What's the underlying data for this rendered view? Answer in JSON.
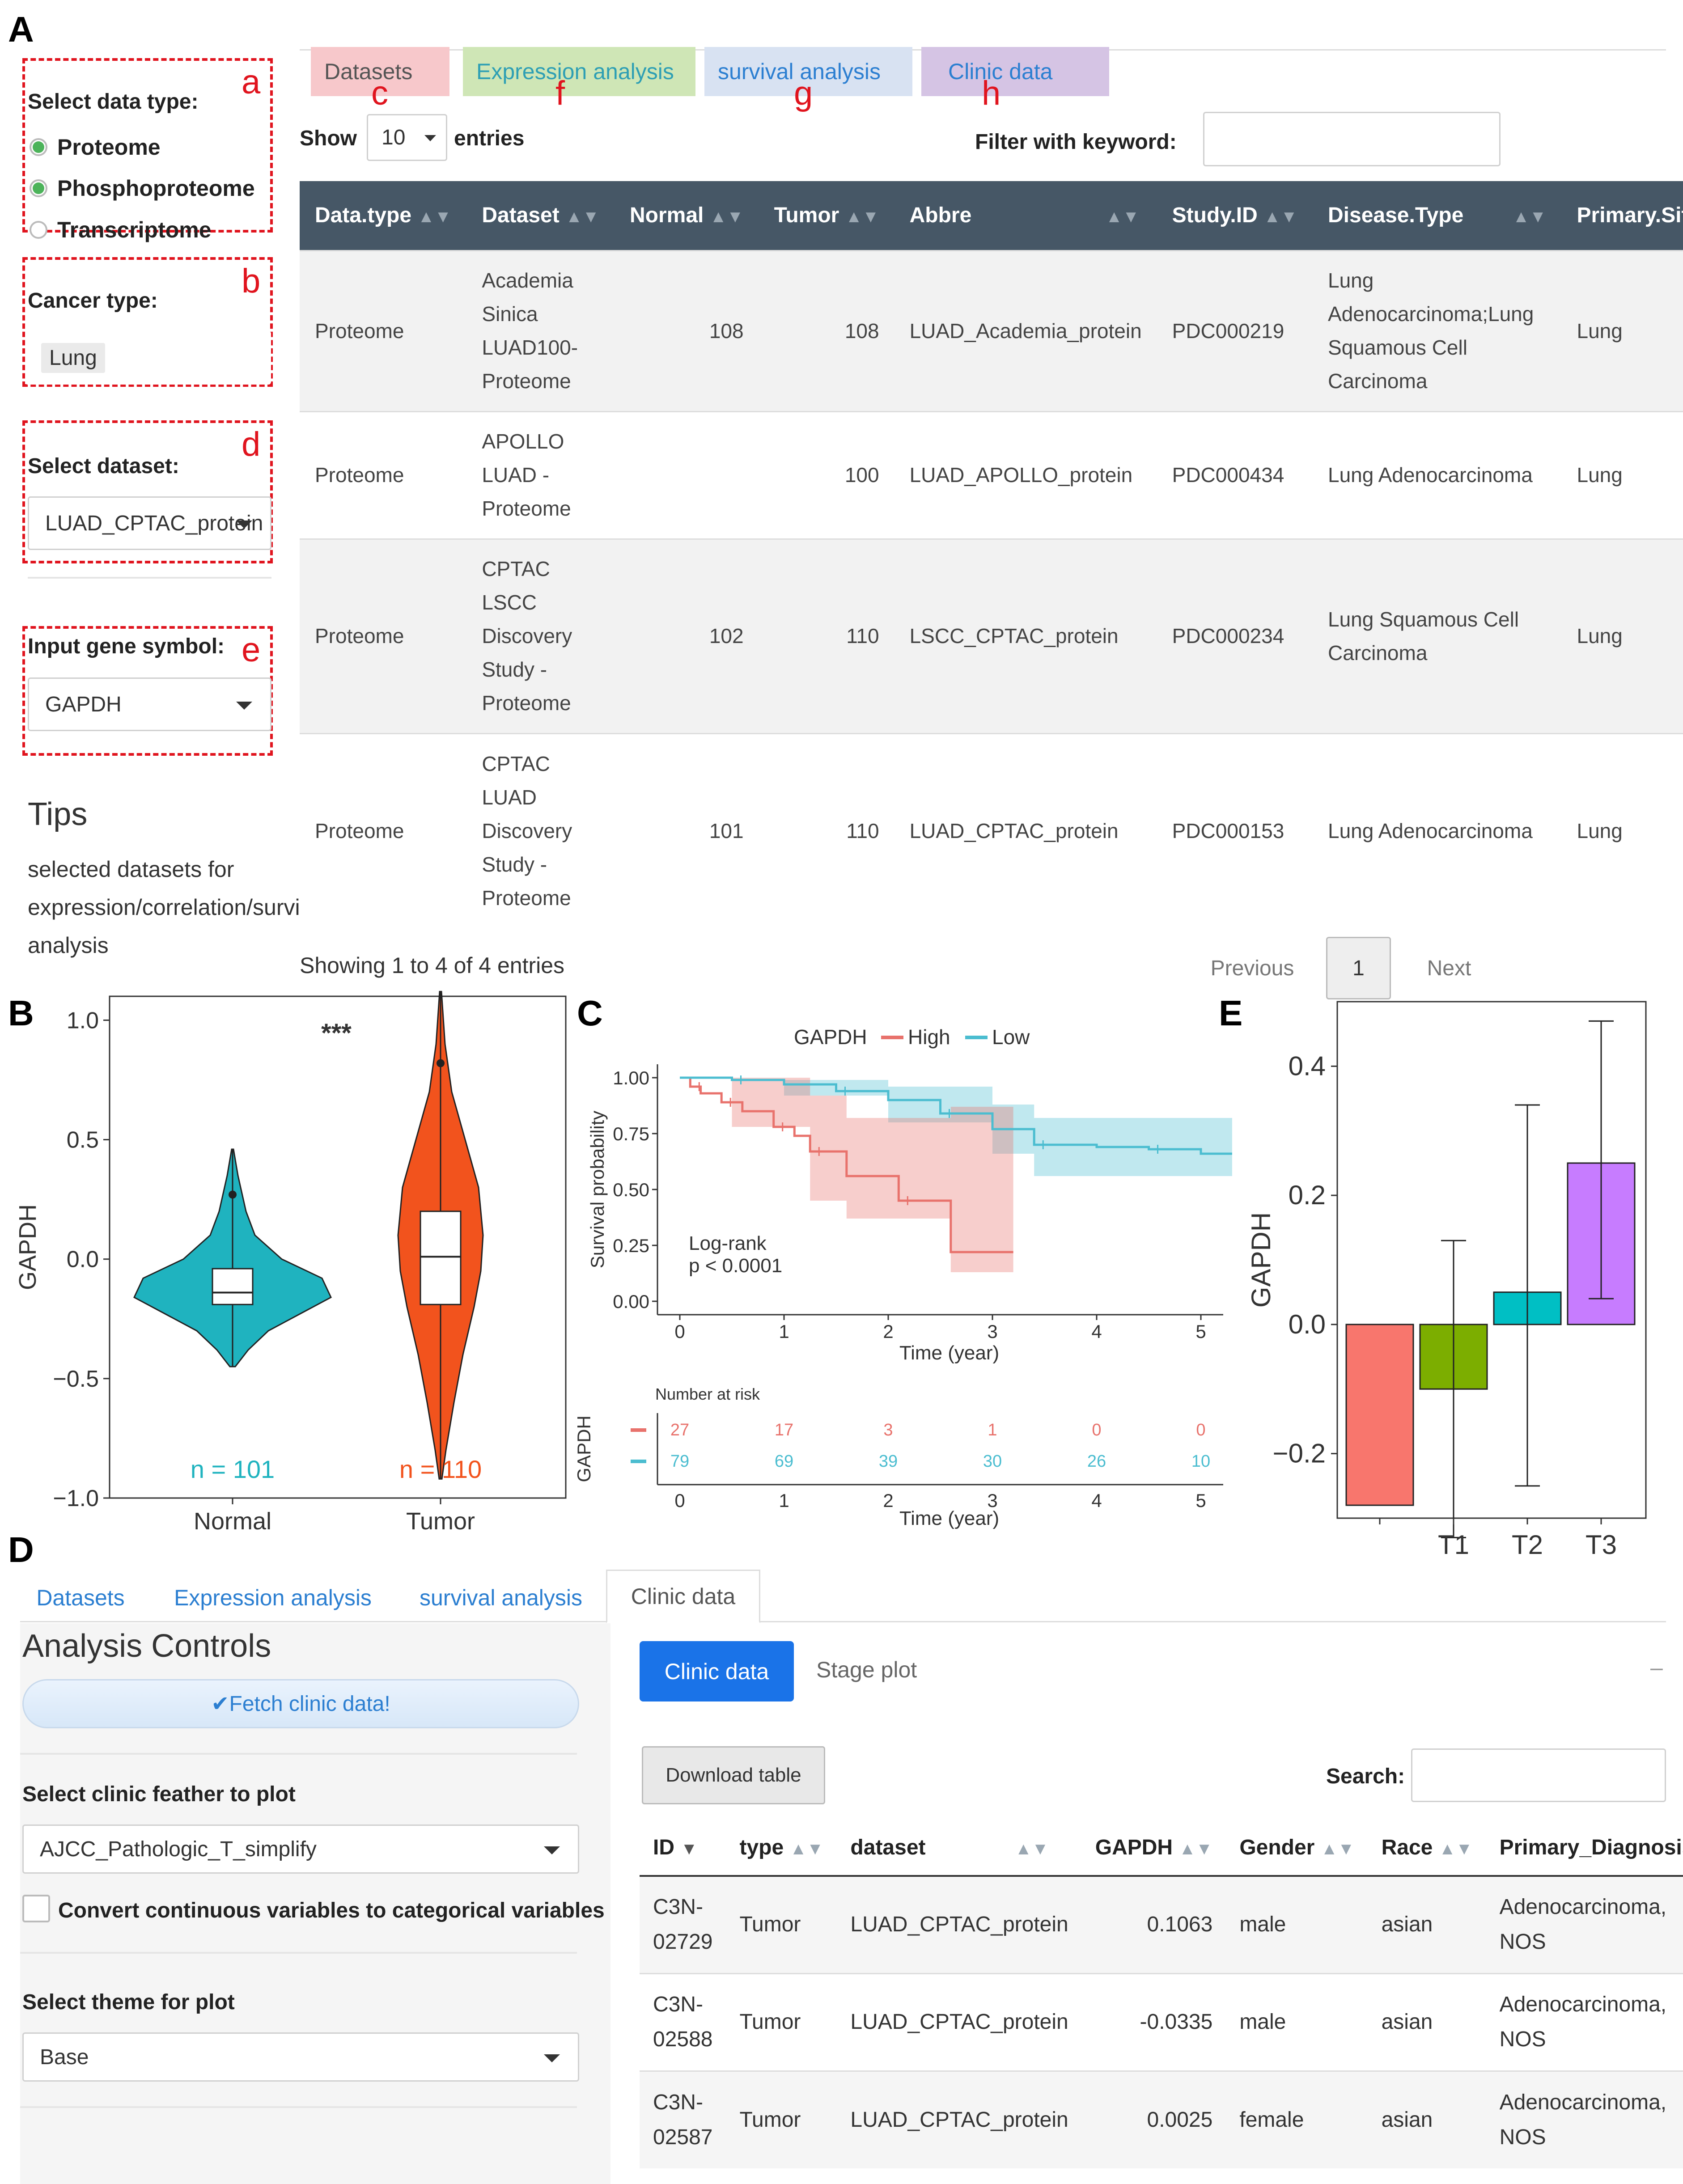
{
  "panel_labels": {
    "A": "A",
    "B": "B",
    "C": "C",
    "D": "D",
    "E": "E"
  },
  "annot": {
    "a": "a",
    "b": "b",
    "c": "c",
    "d": "d",
    "e": "e",
    "f": "f",
    "g": "g",
    "h": "h"
  },
  "sidebar": {
    "data_type_label": "Select data type:",
    "data_types": [
      {
        "label": "Proteome",
        "checked": true
      },
      {
        "label": "Phosphoproteome",
        "checked": true
      },
      {
        "label": "Transcriptome",
        "checked": false
      }
    ],
    "cancer_type_label": "Cancer type:",
    "cancer_type_value": "Lung",
    "dataset_label": "Select dataset:",
    "dataset_value": "LUAD_CPTAC_protein",
    "gene_label": "Input gene symbol:",
    "gene_value": "GAPDH",
    "tips_title": "Tips",
    "tips_text_1": "selected datasets for",
    "tips_text_2": "expression/correlation/survival",
    "tips_text_3": "analysis"
  },
  "tabsA": [
    {
      "label": "Datasets",
      "bg": "#f7c8cb",
      "color": "#555"
    },
    {
      "label": "Expression analysis",
      "bg": "#cfe6b6",
      "color": "#2e9fb4"
    },
    {
      "label": "survival analysis",
      "bg": "#d8e2f2",
      "color": "#2c7fd1"
    },
    {
      "label": "Clinic data",
      "bg": "#d5c4e4",
      "color": "#2c7fd1"
    }
  ],
  "tableA": {
    "show_label": "Show",
    "show_value": "10",
    "entries_label": "entries",
    "filter_label": "Filter with keyword:",
    "headers": [
      "Data.type",
      "Dataset",
      "Normal",
      "Tumor",
      "Abbre",
      "Study.ID",
      "Disease.Type",
      "Primary.Site"
    ],
    "rows": [
      {
        "type": "Proteome",
        "dataset": [
          "Academia",
          "Sinica",
          "LUAD100-",
          "Proteome"
        ],
        "normal": "108",
        "tumor": "108",
        "abbre": "LUAD_Academia_protein",
        "study": "PDC000219",
        "disease": [
          "Lung",
          "Adenocarcinoma;Lung",
          "Squamous Cell",
          "Carcinoma"
        ],
        "site": "Lung"
      },
      {
        "type": "Proteome",
        "dataset": [
          "APOLLO",
          "LUAD -",
          "Proteome"
        ],
        "normal": "",
        "tumor": "100",
        "abbre": "LUAD_APOLLO_protein",
        "study": "PDC000434",
        "disease": [
          "Lung Adenocarcinoma"
        ],
        "site": "Lung"
      },
      {
        "type": "Proteome",
        "dataset": [
          "CPTAC",
          "LSCC",
          "Discovery",
          "Study -",
          "Proteome"
        ],
        "normal": "102",
        "tumor": "110",
        "abbre": "LSCC_CPTAC_protein",
        "study": "PDC000234",
        "disease": [
          "Lung Squamous Cell",
          "Carcinoma"
        ],
        "site": "Lung"
      },
      {
        "type": "Proteome",
        "dataset": [
          "CPTAC",
          "LUAD",
          "Discovery",
          "Study -",
          "Proteome"
        ],
        "normal": "101",
        "tumor": "110",
        "abbre": "LUAD_CPTAC_protein",
        "study": "PDC000153",
        "disease": [
          "Lung Adenocarcinoma"
        ],
        "site": "Lung"
      }
    ],
    "showing": "Showing 1 to 4 of 4 entries",
    "prev": "Previous",
    "page": "1",
    "next": "Next"
  },
  "chart_data": [
    {
      "type": "violin",
      "categories": [
        "Normal",
        "Tumor"
      ],
      "ylabel": "GAPDH",
      "ylim": [
        -1.0,
        1.1
      ],
      "yticks": [
        "1.0",
        "0.5",
        "0.0",
        "−0.5",
        "−1.0"
      ],
      "significance": "***",
      "n_labels": [
        "n = 101",
        "n = 110"
      ],
      "colors": [
        "#1fb3bf",
        "#f2531d"
      ],
      "box": [
        {
          "q1": -0.19,
          "median": -0.14,
          "q3": -0.04
        },
        {
          "q1": -0.19,
          "median": 0.01,
          "q3": 0.2
        }
      ]
    },
    {
      "type": "line",
      "legend_title": "GAPDH",
      "series": [
        {
          "name": "High",
          "color": "#e8726c",
          "x": [
            0,
            0.1,
            0.2,
            0.4,
            0.6,
            0.9,
            1.1,
            1.25,
            1.6,
            2.1,
            2.6,
            3.2
          ],
          "y": [
            1.0,
            0.96,
            0.93,
            0.89,
            0.85,
            0.78,
            0.74,
            0.67,
            0.56,
            0.45,
            0.22,
            0.22
          ]
        },
        {
          "name": "Low",
          "color": "#4bbdd0",
          "x": [
            0,
            0.5,
            1.0,
            1.5,
            2.0,
            2.5,
            3.0,
            3.4,
            4.0,
            4.5,
            5.0,
            5.3
          ],
          "y": [
            1.0,
            0.99,
            0.97,
            0.94,
            0.9,
            0.84,
            0.77,
            0.7,
            0.69,
            0.68,
            0.66,
            0.66
          ]
        }
      ],
      "xlabel": "Time (year)",
      "ylabel": "Survival probability",
      "xlim": [
        0,
        5.3
      ],
      "ylim": [
        0,
        1
      ],
      "xticks": [
        "0",
        "1",
        "2",
        "3",
        "4",
        "5"
      ],
      "yticks": [
        "1.00",
        "0.75",
        "0.50",
        "0.25",
        "0.00"
      ],
      "annotation": [
        "Log-rank",
        "p < 0.0001"
      ],
      "risk_table": {
        "title": "Number at risk",
        "ylabel": "GAPDH",
        "rows": [
          [
            "27",
            "17",
            "3",
            "1",
            "0",
            "0"
          ],
          [
            "79",
            "69",
            "39",
            "30",
            "26",
            "10"
          ]
        ],
        "colors": [
          "#e8726c",
          "#4bbdd0"
        ]
      }
    },
    {
      "type": "bar",
      "categories": [
        "",
        "T1",
        "T2",
        "T3"
      ],
      "values": [
        -0.28,
        -0.1,
        0.05,
        0.25
      ],
      "err_low": [
        null,
        -0.33,
        -0.25,
        0.04
      ],
      "err_high": [
        null,
        0.13,
        0.34,
        0.47
      ],
      "colors": [
        "#f8766d",
        "#7cae00",
        "#00bfc4",
        "#c77cff"
      ],
      "ylabel": "GAPDH",
      "ylim": [
        -0.3,
        0.5
      ],
      "yticks": [
        "0.4",
        "0.2",
        "0.0",
        "−0.2"
      ]
    }
  ],
  "panelD": {
    "tabs": [
      "Datasets",
      "Expression analysis",
      "survival analysis",
      "Clinic data"
    ],
    "controls_title": "Analysis Controls",
    "fetch_label": "✔Fetch clinic data!",
    "feather_label": "Select clinic feather to plot",
    "feather_value": "AJCC_Pathologic_T_simplify",
    "convert_label": "Convert continuous variables to categorical variables",
    "theme_label": "Select theme for plot",
    "theme_value": "Base",
    "subtabs": [
      "Clinic data",
      "Stage plot"
    ],
    "download": "Download table",
    "search": "Search:",
    "headers": [
      "ID",
      "type",
      "dataset",
      "GAPDH",
      "Gender",
      "Race",
      "Primary_Diagnosis"
    ],
    "rows": [
      {
        "id": [
          "C3N-",
          "02729"
        ],
        "type": "Tumor",
        "dataset": "LUAD_CPTAC_protein",
        "gapdh": "0.1063",
        "gender": "male",
        "race": "asian",
        "diag": [
          "Adenocarcinoma,",
          "NOS"
        ]
      },
      {
        "id": [
          "C3N-",
          "02588"
        ],
        "type": "Tumor",
        "dataset": "LUAD_CPTAC_protein",
        "gapdh": "-0.0335",
        "gender": "male",
        "race": "asian",
        "diag": [
          "Adenocarcinoma,",
          "NOS"
        ]
      },
      {
        "id": [
          "C3N-",
          "02587"
        ],
        "type": "Tumor",
        "dataset": "LUAD_CPTAC_protein",
        "gapdh": "0.0025",
        "gender": "female",
        "race": "asian",
        "diag": [
          "Adenocarcinoma,",
          "NOS"
        ]
      }
    ],
    "dash": "–"
  }
}
